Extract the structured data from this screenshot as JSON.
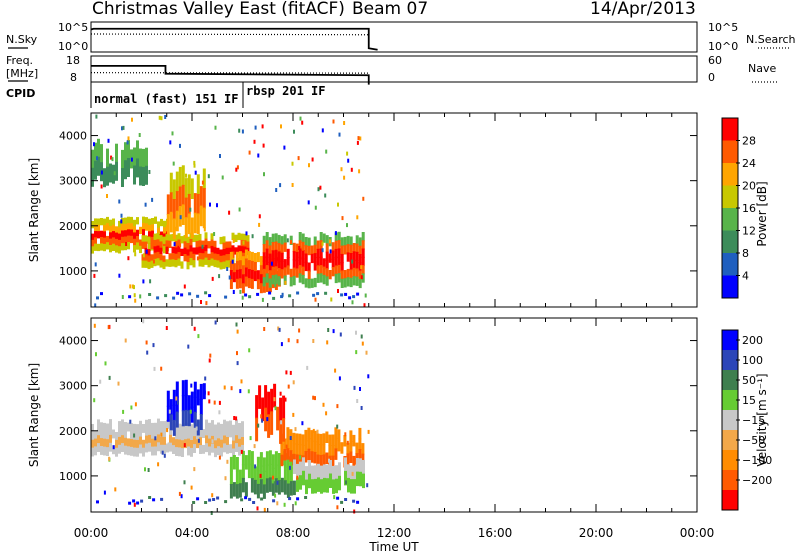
{
  "header": {
    "station": "Christmas Valley East (fitACF)",
    "beam": "Beam 07",
    "date": "14/Apr/2013"
  },
  "colors": {
    "power": [
      "#0000ff",
      "#1f5fbf",
      "#3c8c5a",
      "#58b44a",
      "#c8c800",
      "#ffa500",
      "#ff5a00",
      "#ff0000"
    ],
    "velocity": [
      "#0000ff",
      "#2c46b8",
      "#3f7f4f",
      "#66cc33",
      "#c8c8c8",
      "#f2a84a",
      "#ff8c00",
      "#ff5a00",
      "#ff0000"
    ]
  },
  "chart_data": [
    {
      "type": "line",
      "name": "noise-panel",
      "left_label": "N.Sky",
      "right_label": "N.Search",
      "left_ticks": [
        "10^5",
        "10^0"
      ],
      "right_ticks": [
        "10^5",
        "10^0"
      ],
      "series": [
        {
          "style": "solid",
          "x": [
            0.0,
            0.1,
            11.0,
            11.0,
            11.35
          ],
          "y": [
            3.0,
            3.1,
            3.1,
            0.5,
            0.3
          ]
        },
        {
          "style": "dotted",
          "x": [
            0.0,
            11.0
          ],
          "y": [
            2.4,
            2.3
          ]
        }
      ]
    },
    {
      "type": "line",
      "name": "frequency-panel",
      "left_label": "Freq.",
      "left_unit": "[MHz]",
      "right_label": "Nave",
      "left_ticks": [
        "18",
        "8"
      ],
      "right_ticks": [
        "60",
        "0"
      ],
      "series": [
        {
          "style": "solid",
          "x": [
            0.0,
            2.95,
            2.95,
            11.0,
            11.0
          ],
          "y": [
            14.2,
            14.2,
            11.2,
            10.6,
            7.0
          ]
        },
        {
          "style": "dotted",
          "x": [
            0.0,
            11.0
          ],
          "y": [
            11.6,
            11.4
          ]
        }
      ]
    },
    {
      "type": "table",
      "name": "cpid",
      "label": "CPID",
      "segments": [
        {
          "start": 0.0,
          "end": 6.0,
          "text": "normal (fast) 151 IF"
        },
        {
          "start": 6.0,
          "end": 11.0,
          "text": "rbsp 201 IF"
        }
      ]
    },
    {
      "type": "heatmap",
      "name": "power",
      "ylabel": "Slant Range [km]",
      "xlabel": "Time UT",
      "xlim": [
        0,
        24
      ],
      "ylim": [
        200,
        4500
      ],
      "xticks": [
        "00:00",
        "04:00",
        "08:00",
        "12:00",
        "16:00",
        "20:00",
        "00:00"
      ],
      "yticks": [
        1000,
        2000,
        3000,
        4000
      ],
      "colorbar": {
        "label": "Power [dB]",
        "ticks": [
          "4",
          "8",
          "12",
          "16",
          "20",
          "24",
          "28"
        ]
      },
      "bands": [
        {
          "t": [
            0.0,
            3.0
          ],
          "r": [
            1450,
            2150
          ],
          "levels": [
            4,
            5,
            7,
            6,
            4
          ]
        },
        {
          "t": [
            2.0,
            6.2
          ],
          "r": [
            1100,
            1800
          ],
          "levels": [
            4,
            6,
            7,
            6,
            4
          ]
        },
        {
          "t": [
            5.5,
            7.5
          ],
          "r": [
            600,
            1400
          ],
          "levels": [
            5,
            6,
            7,
            6
          ]
        },
        {
          "t": [
            6.8,
            10.8
          ],
          "r": [
            700,
            1800
          ],
          "levels": [
            3,
            6,
            7,
            7,
            6,
            3
          ]
        },
        {
          "t": [
            3.0,
            4.5
          ],
          "r": [
            1900,
            3200
          ],
          "levels": [
            4,
            6,
            5
          ]
        },
        {
          "t": [
            0.0,
            2.2
          ],
          "r": [
            3000,
            3800
          ],
          "levels": [
            3,
            2
          ]
        }
      ]
    },
    {
      "type": "heatmap",
      "name": "velocity",
      "ylabel": "Slant Range [km]",
      "xlabel": "Time UT",
      "xlim": [
        0,
        24
      ],
      "ylim": [
        200,
        4500
      ],
      "xticks": [
        "00:00",
        "04:00",
        "08:00",
        "12:00",
        "16:00",
        "20:00",
        "00:00"
      ],
      "yticks": [
        1000,
        2000,
        3000,
        4000
      ],
      "colorbar": {
        "label": "Velocity [m s⁻¹]",
        "ticks": [
          "200",
          "100",
          "50",
          "15",
          "−15",
          "−50",
          "−100",
          "−200"
        ]
      },
      "bands": [
        {
          "t": [
            0.0,
            6.0
          ],
          "r": [
            1500,
            2200
          ],
          "levels": [
            4,
            4,
            5,
            4
          ]
        },
        {
          "t": [
            5.5,
            8.0
          ],
          "r": [
            600,
            1500
          ],
          "levels": [
            3,
            3,
            2
          ]
        },
        {
          "t": [
            7.5,
            10.8
          ],
          "r": [
            1300,
            2000
          ],
          "levels": [
            6,
            6,
            7
          ]
        },
        {
          "t": [
            3.0,
            4.5
          ],
          "r": [
            2000,
            3000
          ],
          "levels": [
            0,
            0,
            1
          ]
        },
        {
          "t": [
            6.5,
            7.6
          ],
          "r": [
            1900,
            2900
          ],
          "levels": [
            8,
            7
          ]
        },
        {
          "t": [
            8.0,
            10.8
          ],
          "r": [
            700,
            1300
          ],
          "levels": [
            4,
            3
          ]
        }
      ]
    }
  ]
}
